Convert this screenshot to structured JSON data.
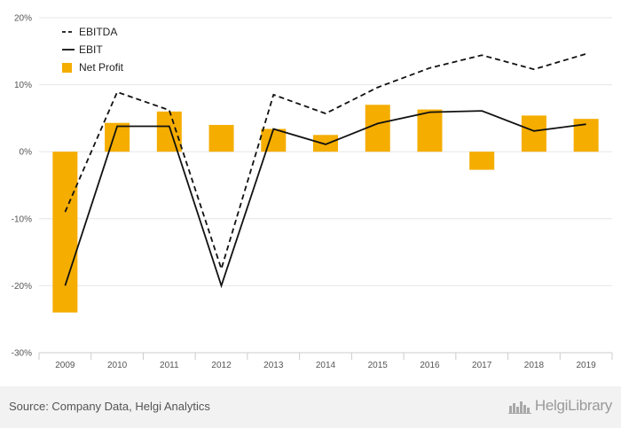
{
  "chart_data": {
    "type": "bar",
    "categories": [
      "2009",
      "2010",
      "2011",
      "2012",
      "2013",
      "2014",
      "2015",
      "2016",
      "2017",
      "2018",
      "2019"
    ],
    "series": [
      {
        "name": "Net Profit",
        "type": "bar",
        "color": "#f5ad00",
        "values": [
          -24,
          4.3,
          6.0,
          4.0,
          3.4,
          2.5,
          7.0,
          6.3,
          -2.7,
          5.4,
          4.9
        ]
      },
      {
        "name": "EBITDA",
        "type": "line",
        "style": "dashed",
        "color": "#111111",
        "values": [
          -9,
          8.9,
          6.2,
          -17.5,
          8.5,
          5.7,
          9.6,
          12.5,
          14.4,
          12.3,
          14.6
        ]
      },
      {
        "name": "EBIT",
        "type": "line",
        "style": "solid",
        "color": "#111111",
        "values": [
          -20,
          3.8,
          3.8,
          -20,
          3.4,
          1.1,
          4.2,
          5.9,
          6.1,
          3.1,
          4.1
        ]
      }
    ],
    "legend": [
      "EBITDA",
      "EBIT",
      "Net Profit"
    ],
    "legend_position": "top-left",
    "ylim": [
      -30,
      20
    ],
    "yticks": [
      20,
      10,
      0,
      -10,
      -20,
      -30
    ],
    "ytick_labels": [
      "20%",
      "10%",
      "0%",
      "-10%",
      "-20%",
      "-30%"
    ],
    "grid": true,
    "title": "",
    "xlabel": "",
    "ylabel": ""
  },
  "footer": {
    "source": "Source: Company Data, Helgi Analytics",
    "brand": "HelgiLibrary",
    "brand_icon": "helgi-library-icon"
  }
}
